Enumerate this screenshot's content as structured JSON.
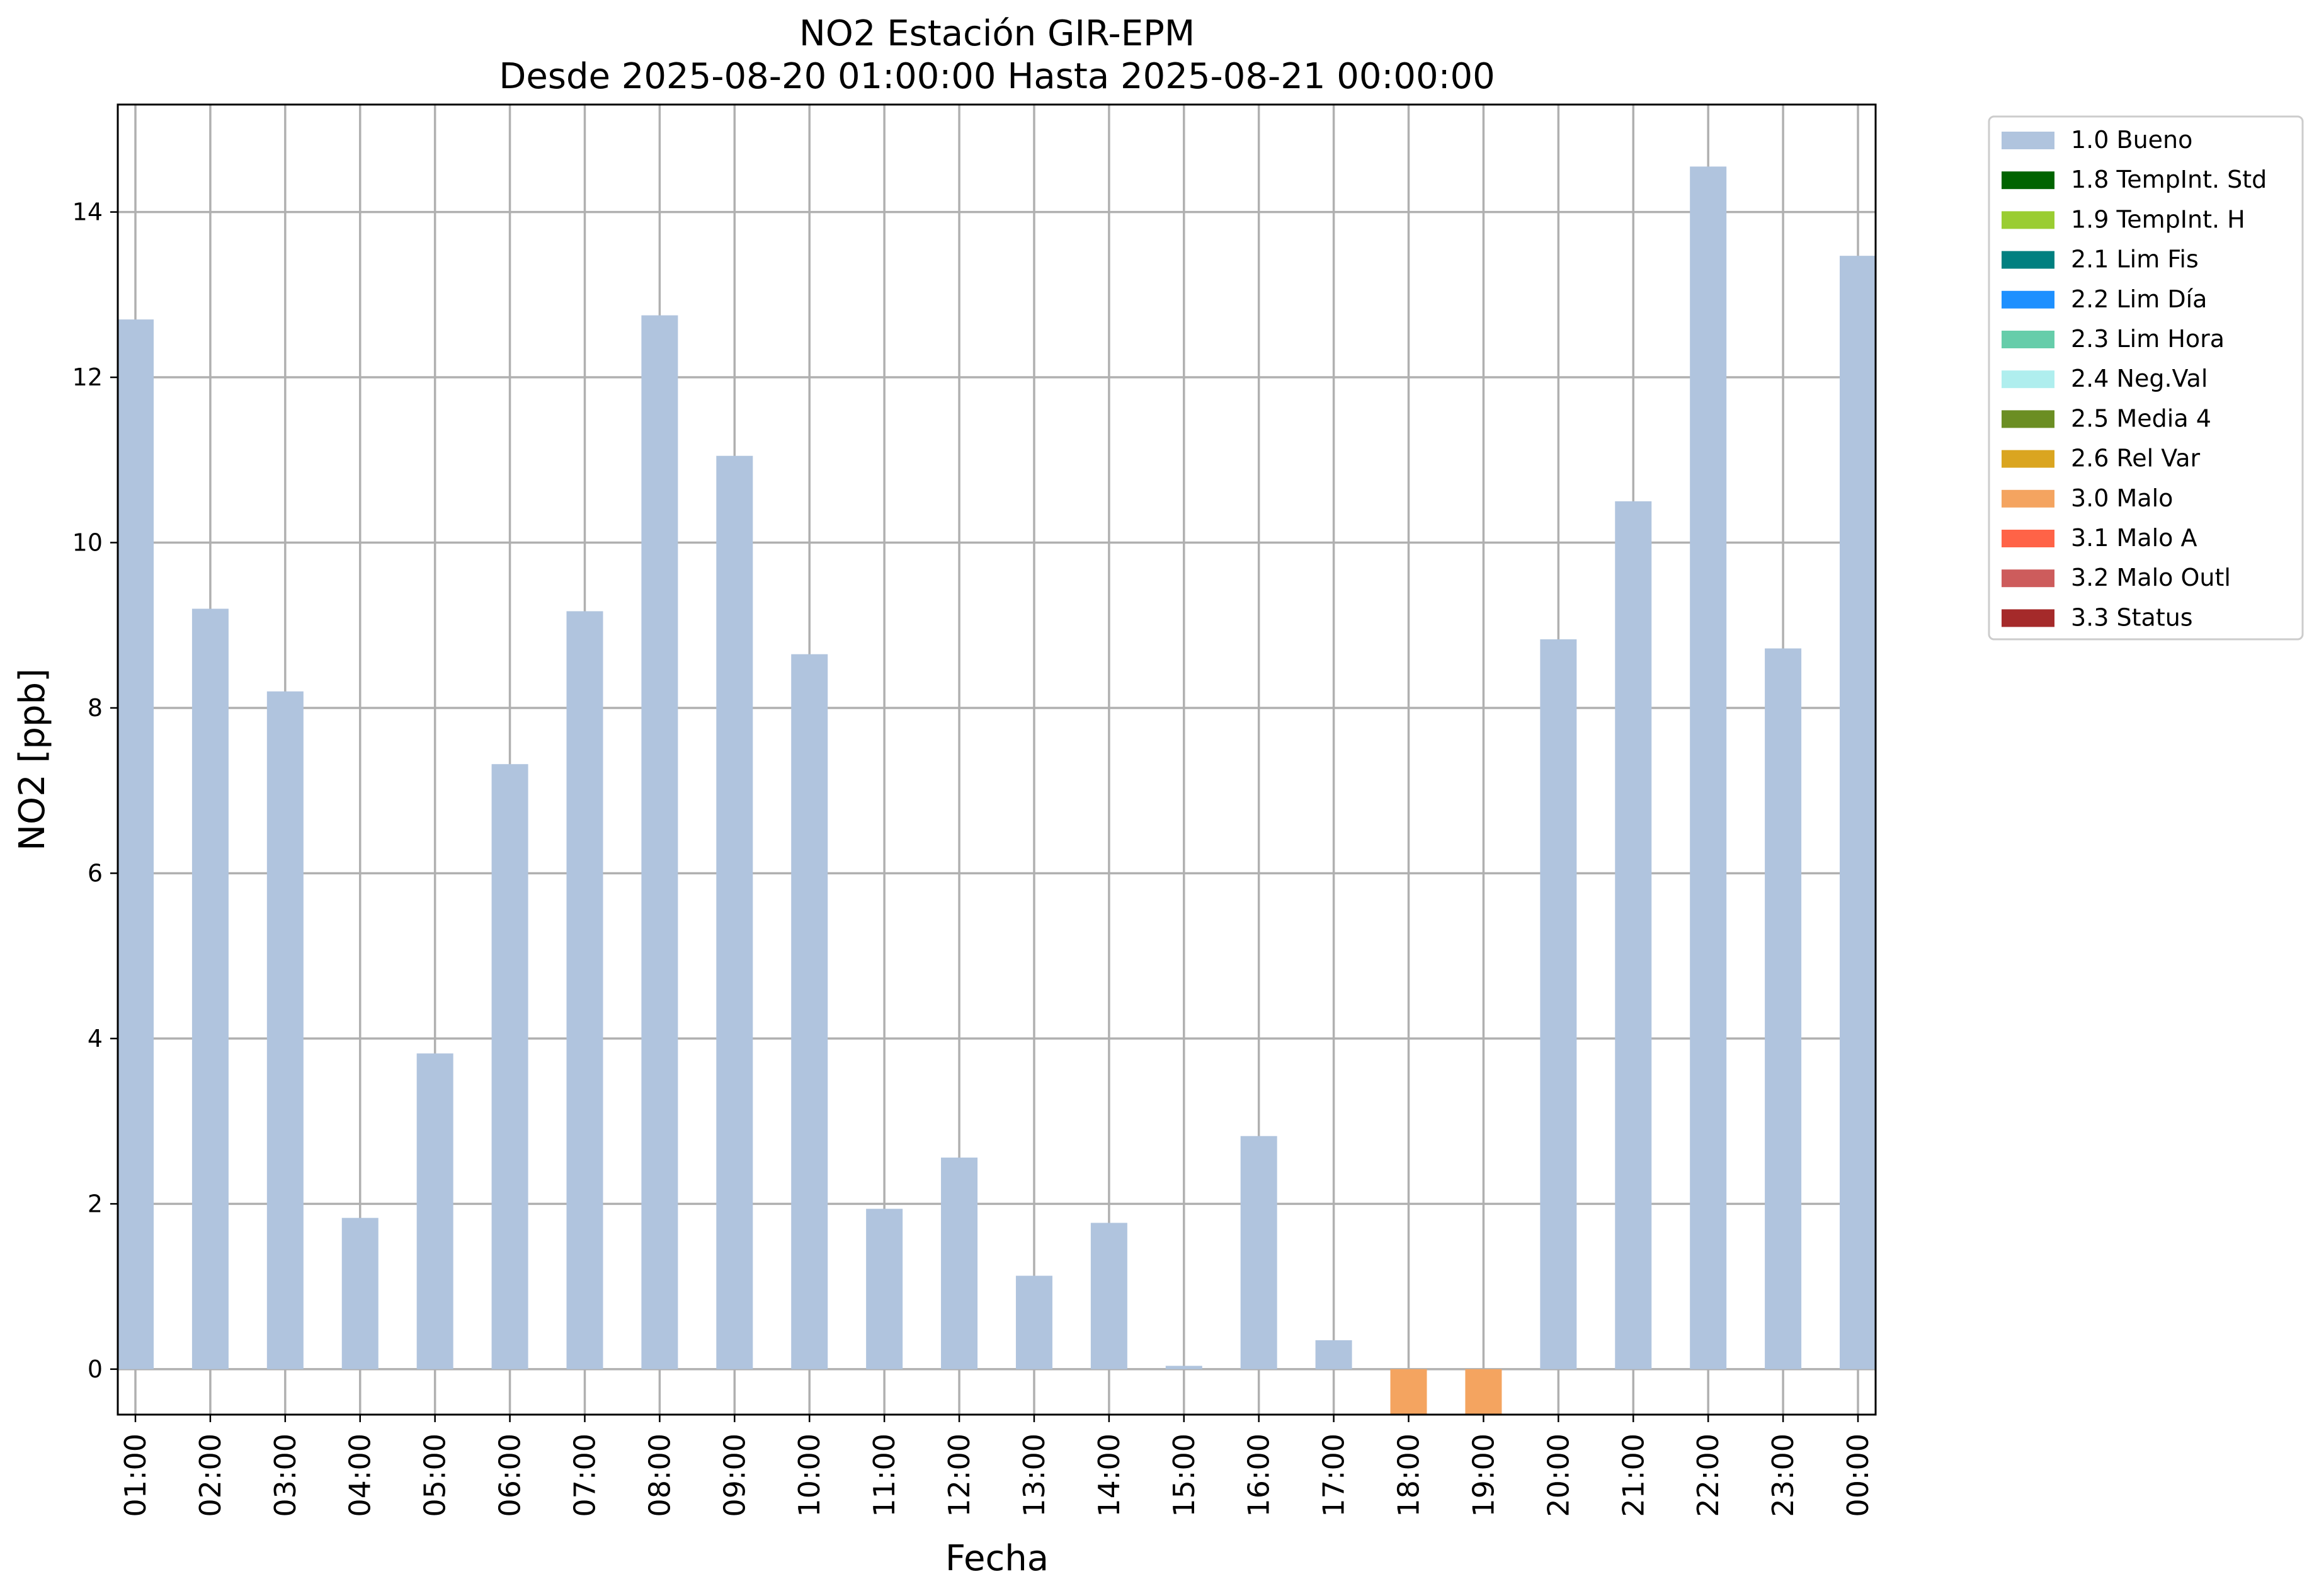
{
  "chart_data": {
    "type": "bar",
    "title": "NO2 Estación GIR-EPM",
    "subtitle": "Desde 2025-08-20 01:00:00 Hasta 2025-08-21 00:00:00",
    "xlabel": "Fecha",
    "ylabel": "NO2 [ppb]",
    "ylim": [
      -0.55,
      15.3
    ],
    "yticks": [
      0,
      2,
      4,
      6,
      8,
      10,
      12,
      14
    ],
    "grid": true,
    "legend_position": "outside-top-right",
    "categories": [
      "01:00",
      "02:00",
      "03:00",
      "04:00",
      "05:00",
      "06:00",
      "07:00",
      "08:00",
      "09:00",
      "10:00",
      "11:00",
      "12:00",
      "13:00",
      "14:00",
      "15:00",
      "16:00",
      "17:00",
      "18:00",
      "19:00",
      "20:00",
      "21:00",
      "22:00",
      "23:00",
      "00:00"
    ],
    "values": [
      12.7,
      9.2,
      8.2,
      1.83,
      3.82,
      7.32,
      9.17,
      12.75,
      11.05,
      8.65,
      1.94,
      2.56,
      1.13,
      1.77,
      0.04,
      2.82,
      0.35,
      -0.55,
      -0.55,
      8.83,
      10.5,
      14.55,
      8.72,
      13.47
    ],
    "flags": [
      "1.0 Bueno",
      "1.0 Bueno",
      "1.0 Bueno",
      "1.0 Bueno",
      "1.0 Bueno",
      "1.0 Bueno",
      "1.0 Bueno",
      "1.0 Bueno",
      "1.0 Bueno",
      "1.0 Bueno",
      "1.0 Bueno",
      "1.0 Bueno",
      "1.0 Bueno",
      "1.0 Bueno",
      "1.0 Bueno",
      "1.0 Bueno",
      "1.0 Bueno",
      "3.0 Malo",
      "3.0 Malo",
      "1.0 Bueno",
      "1.0 Bueno",
      "1.0 Bueno",
      "1.0 Bueno",
      "1.0 Bueno"
    ],
    "legend": [
      {
        "name": "1.0 Bueno",
        "color": "#b0c4de"
      },
      {
        "name": "1.8 TempInt. Std",
        "color": "#006400"
      },
      {
        "name": "1.9 TempInt. H",
        "color": "#9acd32"
      },
      {
        "name": "2.1 Lim Fis",
        "color": "#008080"
      },
      {
        "name": "2.2 Lim Día",
        "color": "#1e90ff"
      },
      {
        "name": "2.3 Lim Hora",
        "color": "#66cdaa"
      },
      {
        "name": "2.4 Neg.Val",
        "color": "#afeeee"
      },
      {
        "name": "2.5 Media 4",
        "color": "#6b8e23"
      },
      {
        "name": "2.6 Rel Var",
        "color": "#daa520"
      },
      {
        "name": "3.0 Malo",
        "color": "#f4a460"
      },
      {
        "name": "3.1 Malo A",
        "color": "#ff6347"
      },
      {
        "name": "3.2 Malo Outl",
        "color": "#cd5c5c"
      },
      {
        "name": "3.3 Status",
        "color": "#a52a2a"
      }
    ]
  }
}
